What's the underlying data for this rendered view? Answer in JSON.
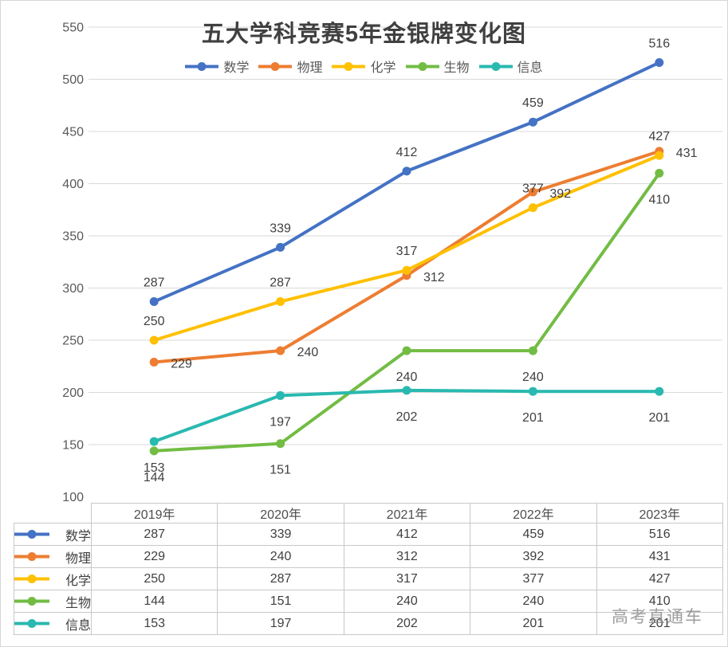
{
  "chart_data": {
    "type": "line",
    "title": "五大学科竞赛5年金银牌变化图",
    "categories": [
      "2019年",
      "2020年",
      "2021年",
      "2022年",
      "2023年"
    ],
    "series": [
      {
        "id": "math",
        "name": "数学",
        "color": "#4472C4",
        "values": [
          287,
          339,
          412,
          459,
          516
        ],
        "label_placement": "above"
      },
      {
        "id": "physics",
        "name": "物理",
        "color": "#ED7D31",
        "values": [
          229,
          240,
          312,
          392,
          431
        ],
        "label_placement": "right"
      },
      {
        "id": "chemistry",
        "name": "化学",
        "color": "#FFC000",
        "values": [
          250,
          287,
          317,
          377,
          427
        ],
        "label_placement": "above"
      },
      {
        "id": "biology",
        "name": "生物",
        "color": "#72BC44",
        "values": [
          144,
          151,
          240,
          240,
          410
        ],
        "label_placement": "below"
      },
      {
        "id": "informatics",
        "name": "信息",
        "color": "#29B9B0",
        "values": [
          153,
          197,
          202,
          201,
          201
        ],
        "label_placement": "below"
      }
    ],
    "y_axis": {
      "min": 100,
      "max": 550,
      "step": 50
    },
    "grid": true,
    "legend_position": "top",
    "data_table_shown": true
  },
  "watermark": "高考直通车"
}
